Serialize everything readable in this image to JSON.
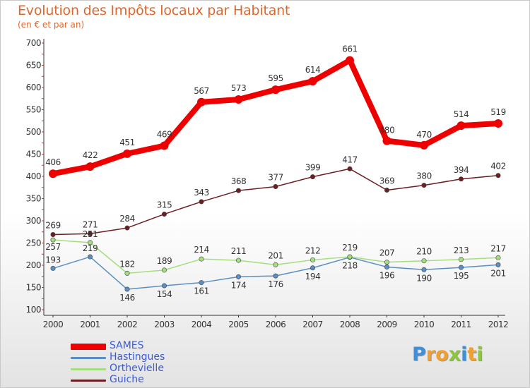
{
  "title": "Evolution des Impôts locaux par Habitant",
  "subtitle": "(en € et par an)",
  "logo": {
    "letters": [
      {
        "ch": "P",
        "color": "#3f8fd8"
      },
      {
        "ch": "r",
        "color": "#f0a030"
      },
      {
        "ch": "o",
        "color": "#f0a030"
      },
      {
        "ch": "x",
        "color": "#8cc63f"
      },
      {
        "ch": "i",
        "color": "#3f8fd8"
      },
      {
        "ch": "t",
        "color": "#f0a030"
      },
      {
        "ch": "i",
        "color": "#8cc63f"
      }
    ]
  },
  "chart_data": {
    "type": "line",
    "title": "Evolution des Impôts locaux par Habitant",
    "subtitle": "(en € et par an)",
    "xlabel": "",
    "ylabel": "",
    "x": [
      "2000",
      "2001",
      "2002",
      "2003",
      "2004",
      "2005",
      "2006",
      "2007",
      "2008",
      "2009",
      "2010",
      "2011",
      "2012"
    ],
    "ylim": [
      100,
      700
    ],
    "yticks": [
      100,
      150,
      200,
      250,
      300,
      350,
      400,
      450,
      500,
      550,
      600,
      650,
      700
    ],
    "grid": false,
    "legend_position": "bottom-left",
    "series": [
      {
        "name": "SAMES",
        "color": "#ee0000",
        "width": 8,
        "marker": 6,
        "values": [
          406,
          422,
          451,
          469,
          567,
          573,
          595,
          614,
          661,
          480,
          470,
          514,
          519
        ]
      },
      {
        "name": "Hastingues",
        "color": "#5b8fc4",
        "width": 1.5,
        "marker": 3.2,
        "values": [
          193,
          219,
          146,
          154,
          161,
          174,
          176,
          194,
          218,
          196,
          190,
          195,
          201
        ]
      },
      {
        "name": "Orthevielle",
        "color": "#a4de7e",
        "width": 1.5,
        "marker": 3.2,
        "values": [
          257,
          251,
          182,
          189,
          214,
          211,
          201,
          212,
          219,
          207,
          210,
          213,
          217
        ]
      },
      {
        "name": "Guiche",
        "color": "#6b1f22",
        "width": 1.5,
        "marker": 3.2,
        "values": [
          269,
          271,
          284,
          315,
          343,
          368,
          377,
          399,
          417,
          369,
          380,
          394,
          402
        ]
      }
    ]
  }
}
